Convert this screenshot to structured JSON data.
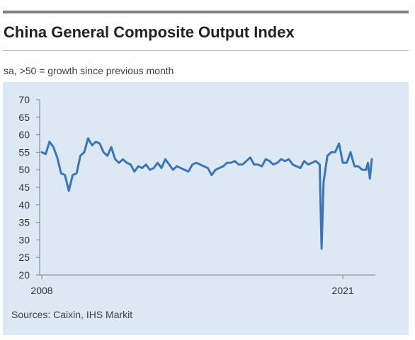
{
  "header": {
    "title": "China General Composite Output Index",
    "subtitle": "sa, >50 = growth since previous month"
  },
  "footer": {
    "source": "Sources: Caixin, IHS Markit"
  },
  "colors": {
    "line": "#3c74b4",
    "panel_bg": "#dde8f5",
    "axis": "#808080"
  },
  "chart_data": {
    "type": "line",
    "title": "China General Composite Output Index",
    "subtitle": "sa, >50 = growth since previous month",
    "xlabel": "",
    "ylabel": "",
    "ylim": [
      20,
      70
    ],
    "yticks": [
      20,
      25,
      30,
      35,
      40,
      45,
      50,
      55,
      60,
      65,
      70
    ],
    "xlim": [
      "2008-01",
      "2022-04"
    ],
    "xtick_labels": [
      {
        "x": "2008-01",
        "label": "2008"
      },
      {
        "x": "2021-01",
        "label": "2021"
      }
    ],
    "grid": false,
    "legend": "none",
    "series": [
      {
        "x": [
          "2008-01",
          "2008-03",
          "2008-05",
          "2008-07",
          "2008-09",
          "2008-11",
          "2009-01",
          "2009-03",
          "2009-05",
          "2009-07",
          "2009-09",
          "2009-11",
          "2010-01",
          "2010-03",
          "2010-05",
          "2010-07",
          "2010-09",
          "2010-11",
          "2011-01",
          "2011-03",
          "2011-05",
          "2011-07",
          "2011-09",
          "2011-11",
          "2012-01",
          "2012-03",
          "2012-05",
          "2012-07",
          "2012-09",
          "2012-11",
          "2013-01",
          "2013-03",
          "2013-05",
          "2013-07",
          "2013-09",
          "2013-11",
          "2014-01",
          "2014-03",
          "2014-05",
          "2014-07",
          "2014-09",
          "2014-11",
          "2015-01",
          "2015-03",
          "2015-05",
          "2015-07",
          "2015-09",
          "2015-11",
          "2016-01",
          "2016-03",
          "2016-05",
          "2016-07",
          "2016-09",
          "2016-11",
          "2017-01",
          "2017-03",
          "2017-05",
          "2017-07",
          "2017-09",
          "2017-11",
          "2018-01",
          "2018-03",
          "2018-05",
          "2018-07",
          "2018-09",
          "2018-11",
          "2019-01",
          "2019-03",
          "2019-05",
          "2019-07",
          "2019-09",
          "2019-11",
          "2020-01",
          "2020-02",
          "2020-03",
          "2020-05",
          "2020-07",
          "2020-09",
          "2020-11",
          "2021-01",
          "2021-03",
          "2021-05",
          "2021-07",
          "2021-09",
          "2021-11",
          "2022-01",
          "2022-02",
          "2022-03",
          "2022-04"
        ],
        "values": [
          55.0,
          54.5,
          58.0,
          56.5,
          53.5,
          49.0,
          48.5,
          44.0,
          48.5,
          49.0,
          54.0,
          55.0,
          59.0,
          57.0,
          58.0,
          57.5,
          55.0,
          54.0,
          56.5,
          53.0,
          52.0,
          53.0,
          52.0,
          51.5,
          49.5,
          51.0,
          50.5,
          51.5,
          50.0,
          50.5,
          52.0,
          50.5,
          53.0,
          51.5,
          50.0,
          51.0,
          50.5,
          50.0,
          49.5,
          51.5,
          52.0,
          51.5,
          51.0,
          50.5,
          48.5,
          50.0,
          50.5,
          51.0,
          52.0,
          52.0,
          52.5,
          51.5,
          51.5,
          52.5,
          53.5,
          51.5,
          51.5,
          51.0,
          53.0,
          52.5,
          51.5,
          52.0,
          53.0,
          52.5,
          53.0,
          51.5,
          51.0,
          50.5,
          52.5,
          51.5,
          52.0,
          52.5,
          51.5,
          27.5,
          46.5,
          54.0,
          55.0,
          55.0,
          57.5,
          52.0,
          52.0,
          55.0,
          51.0,
          51.0,
          50.0,
          50.0,
          52.0,
          47.5,
          53.0
        ]
      }
    ]
  }
}
